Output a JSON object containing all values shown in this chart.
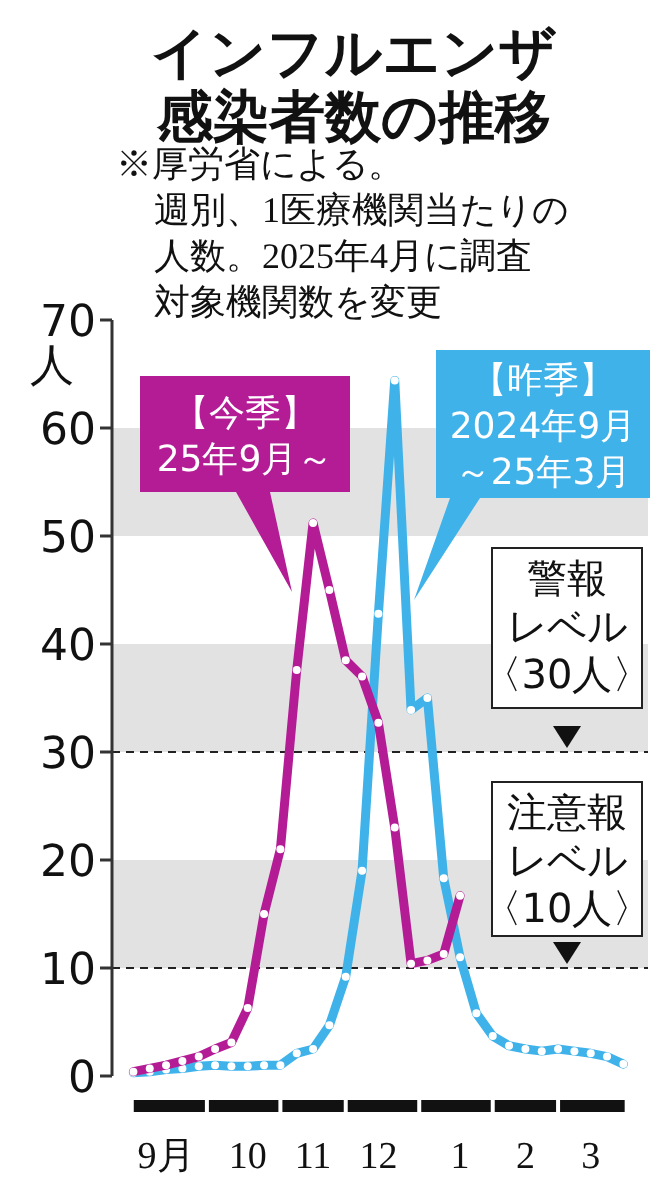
{
  "chart_data": {
    "type": "line",
    "title": "インフルエンザ感染者数の推移",
    "annotations": [
      "※厚労省による。",
      "週別、1医療機関当たりの人数。2025年4月に調査対象機関数を変更"
    ],
    "ylabel": "人",
    "categories": [
      null,
      null,
      "9月",
      null,
      null,
      null,
      null,
      "10",
      null,
      null,
      null,
      "11",
      null,
      null,
      null,
      "12",
      null,
      null,
      null,
      null,
      "1",
      null,
      null,
      null,
      "2",
      null,
      null,
      null,
      "3",
      null,
      null
    ],
    "ylim": [
      0,
      70
    ],
    "yticks": [
      0,
      10,
      20,
      30,
      40,
      50,
      60,
      70
    ],
    "grid": false,
    "marker": "circle",
    "line_style": "solid",
    "series": [
      {
        "name": "【昨季】2024年9月～25年3月",
        "color": "#3fb2ea",
        "values": [
          0.3,
          0.4,
          0.6,
          0.7,
          0.9,
          1.0,
          0.9,
          0.9,
          1.0,
          1.0,
          2.1,
          2.5,
          4.7,
          9.2,
          19,
          42.8,
          64.4,
          33.9,
          35,
          18.3,
          11,
          5.8,
          3.7,
          2.8,
          2.5,
          2.3,
          2.5,
          2.3,
          2.1,
          1.8,
          1.1
        ]
      },
      {
        "name": "【今季】25年9月～",
        "color": "#b41c96",
        "values": [
          0.4,
          0.7,
          1.0,
          1.4,
          1.8,
          2.5,
          3.1,
          6.3,
          15,
          21,
          37.6,
          51.2,
          45,
          38.5,
          37,
          32.7,
          23,
          10.4,
          10.7,
          11.3,
          16.7,
          null,
          null,
          null,
          null,
          null,
          null,
          null,
          null,
          null,
          null
        ]
      }
    ],
    "bands": [
      {
        "axis": "y",
        "from": 10,
        "to": 20,
        "color": "#e2e2e2"
      },
      {
        "axis": "y",
        "from": 30,
        "to": 40,
        "color": "#e2e2e2"
      },
      {
        "axis": "y",
        "from": 50,
        "to": 60,
        "color": "#e2e2e2"
      }
    ],
    "ref_lines": [
      {
        "axis": "y",
        "value": 30,
        "label": "警報レベル〈30人〉",
        "line_style": "dashed",
        "color": "#222222"
      },
      {
        "axis": "y",
        "value": 10,
        "label": "注意報レベル〈10人〉",
        "line_style": "dashed",
        "color": "#222222"
      }
    ]
  }
}
